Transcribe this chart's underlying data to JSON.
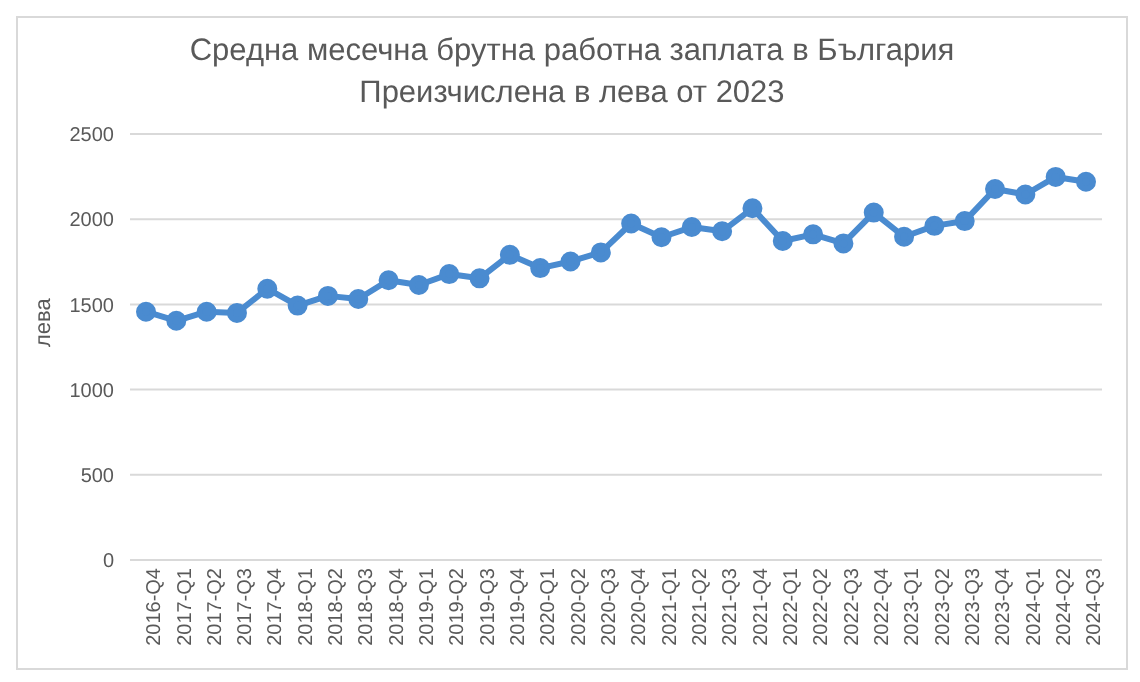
{
  "chart_data": {
    "type": "line",
    "title": "Средна месечна брутна работна заплата в България",
    "subtitle": "Преизчислена в лева от 2023",
    "ylabel": "лева",
    "categories": [
      "2016-Q4",
      "2017-Q1",
      "2017-Q2",
      "2017-Q3",
      "2017-Q4",
      "2018-Q1",
      "2018-Q2",
      "2018-Q3",
      "2018-Q4",
      "2019-Q1",
      "2019-Q2",
      "2019-Q3",
      "2019-Q4",
      "2020-Q1",
      "2020-Q2",
      "2020-Q3",
      "2020-Q4",
      "2021-Q1",
      "2021-Q2",
      "2021-Q3",
      "2021-Q4",
      "2022-Q1",
      "2022-Q2",
      "2022-Q3",
      "2022-Q4",
      "2023-Q1",
      "2023-Q2",
      "2023-Q3",
      "2023-Q4",
      "2024-Q1",
      "2024-Q2",
      "2024-Q3"
    ],
    "series": [
      {
        "color": "#4a8bd0",
        "values": [
          1457,
          1404,
          1457,
          1450,
          1592,
          1493,
          1550,
          1532,
          1642,
          1614,
          1678,
          1653,
          1791,
          1713,
          1752,
          1805,
          1975,
          1894,
          1954,
          1929,
          2064,
          1872,
          1911,
          1858,
          2039,
          1897,
          1961,
          1989,
          2177,
          2145,
          2248,
          2220
        ]
      }
    ],
    "ylim": [
      0,
      2500
    ],
    "yticks": [
      0,
      500,
      1000,
      1500,
      2000,
      2500
    ],
    "grid": "y",
    "marker": "circle",
    "line_style": "solid",
    "legend": false
  }
}
